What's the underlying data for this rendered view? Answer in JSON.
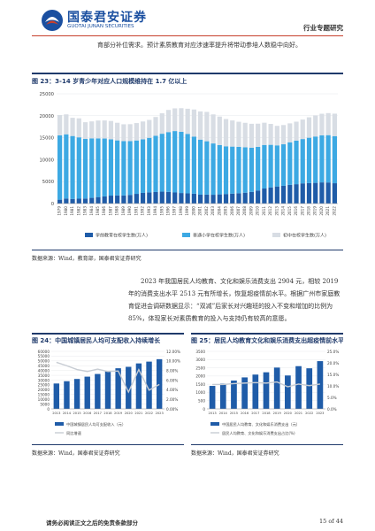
{
  "header": {
    "logo_cn": "国泰君安证券",
    "logo_en": "GUOTAI JUNAN SECURITIES",
    "report_type": "行业专题研究",
    "brand_color": "#1a4fa0",
    "accent_color": "#c7402d"
  },
  "intro_text": "育部分补位需求。预计素质教育对应涉速率提升将带动参培人数稳中向好。",
  "fig23": {
    "title": "图 23：3-14 岁青少年对应人口规模维持在 1.7 亿以上",
    "source": "数据来源：Wind，教育部，国泰君安证券研究"
  },
  "paragraph": "2023 年我国居民人均教育、文化和娱乐消费支出 2904 元，相较 2019 年的消费支出水平 2513 元有所增长，恢复超疫情前水平。根据广州市家庭教育促进会调研数据显示：“双减”后家长对兴趣班的投入不变和增加的比例为 85%，体现家长对素质教育的投入与支持仍有较高的意愿。",
  "fig24": {
    "title": "图 24：中国城镇居民人均可支配收入持续增长",
    "source": "数据来源：Wind，国泰君安证券研究"
  },
  "fig25": {
    "title": "图 25：居民人均教育文化和娱乐消费支出超疫情前水平",
    "source": "数据来源：Wind，国泰君安证券研究"
  },
  "footer": {
    "disclaimer": "请务必阅读正文之后的免责条款部分",
    "page": "15 of 44"
  },
  "chart_data": [
    {
      "type": "bar",
      "stacked": true,
      "categories": [
        "1979",
        "1980",
        "1981",
        "1982",
        "1983",
        "1984",
        "1985",
        "1986",
        "1987",
        "1988",
        "1989",
        "1990",
        "1991",
        "1992",
        "1993",
        "1994",
        "1995",
        "1996",
        "1997",
        "1998",
        "1999",
        "2000",
        "2001",
        "2002",
        "2003",
        "2004",
        "2005",
        "2006",
        "2007",
        "2008",
        "2009",
        "2010",
        "2011",
        "2012",
        "2013",
        "2014",
        "2015",
        "2016",
        "2017",
        "2018",
        "2019",
        "2020",
        "2021",
        "2022"
      ],
      "series": [
        {
          "name": "学前教育在校学生数(万人)",
          "color": "#1f5ca8",
          "values": [
            880,
            1150,
            1056,
            1113,
            1140,
            1295,
            1480,
            1629,
            1808,
            1854,
            1848,
            1972,
            2209,
            2428,
            2552,
            2630,
            2711,
            2666,
            2519,
            2403,
            2326,
            2244,
            2022,
            2036,
            2004,
            2089,
            2179,
            2264,
            2349,
            2475,
            2658,
            2977,
            3425,
            3686,
            3895,
            4051,
            4265,
            4414,
            4600,
            4656,
            4714,
            4818,
            4805,
            4628
          ]
        },
        {
          "name": "普通小学在校学生数(万人)",
          "color": "#3da9e3",
          "values": [
            14663,
            14627,
            14333,
            13972,
            13578,
            13557,
            13370,
            13183,
            12836,
            12536,
            12373,
            12241,
            12164,
            12201,
            12421,
            12823,
            13195,
            13615,
            13995,
            13954,
            13548,
            13013,
            12543,
            12157,
            11690,
            11246,
            10864,
            10712,
            10564,
            10332,
            10071,
            9941,
            9926,
            9695,
            9361,
            9451,
            9692,
            9913,
            10094,
            10339,
            10561,
            10725,
            10780,
            10732
          ]
        },
        {
          "name": "初中在校学生数(万人)",
          "color": "#d8dde4",
          "values": [
            4613,
            4538,
            4144,
            4328,
            3809,
            3864,
            4066,
            4117,
            4174,
            4015,
            3838,
            3869,
            3960,
            4066,
            4082,
            4266,
            4657,
            5048,
            5168,
            5363,
            5722,
            6168,
            6431,
            6688,
            6618,
            6475,
            6215,
            5958,
            5721,
            5584,
            5441,
            5276,
            5067,
            4763,
            4440,
            4384,
            4312,
            4329,
            4442,
            4652,
            4827,
            4914,
            5018,
            5120
          ]
        }
      ],
      "ylim": [
        0,
        25000
      ],
      "yticks": [
        0,
        5000,
        10000,
        15000,
        20000,
        25000
      ],
      "legend": "bottom"
    },
    {
      "type": "bar+line",
      "categories": [
        "2013",
        "2014",
        "2015",
        "2016",
        "2017",
        "2018",
        "2019",
        "2020",
        "2021",
        "2022",
        "2023"
      ],
      "series": [
        {
          "name": "中国城镇居民人均可支配收入（元）",
          "kind": "bar",
          "axis": "left",
          "color": "#1f5ca8",
          "values": [
            26467,
            28844,
            31195,
            33616,
            36396,
            39251,
            42359,
            43834,
            47412,
            49283,
            51821
          ]
        },
        {
          "name": "同比增速",
          "kind": "line",
          "axis": "right",
          "color": "#c7ccd3",
          "values": [
            9.7,
            9.0,
            8.2,
            7.8,
            8.3,
            7.8,
            7.9,
            3.5,
            8.2,
            3.9,
            5.1
          ]
        }
      ],
      "ylim_left": [
        0,
        60000
      ],
      "yticks_left": [
        0,
        5000,
        10000,
        15000,
        20000,
        25000,
        30000,
        35000,
        40000,
        45000,
        50000,
        55000,
        60000
      ],
      "ylim_right": [
        0,
        12
      ],
      "yticks_right": [
        "0.00%",
        "2.00%",
        "4.00%",
        "6.00%",
        "8.00%",
        "10.00%",
        "12.00%"
      ],
      "legend": "bottom"
    },
    {
      "type": "bar+line",
      "categories": [
        "2013",
        "2014",
        "2015",
        "2016",
        "2017",
        "2018",
        "2019",
        "2020",
        "2021",
        "2022",
        "2023"
      ],
      "series": [
        {
          "name": "中国居民人均教育、文化和娱乐消费支出（元）",
          "kind": "bar",
          "axis": "left",
          "color": "#1f5ca8",
          "values": [
            1398,
            1536,
            1723,
            1915,
            2086,
            2226,
            2513,
            2032,
            2599,
            2469,
            2904
          ]
        },
        {
          "name": "居民人均教育、文化和娱乐消费支出占比(%)",
          "kind": "line",
          "axis": "right",
          "color": "#c7ccd3",
          "values": [
            10.6,
            10.6,
            11.0,
            11.2,
            11.4,
            11.2,
            11.7,
            9.6,
            10.8,
            10.1,
            10.8
          ]
        }
      ],
      "ylim_left": [
        0,
        3500
      ],
      "yticks_left": [
        0,
        500,
        1000,
        1500,
        2000,
        2500,
        3000,
        3500
      ],
      "ylim_right": [
        0,
        25
      ],
      "yticks_right": [
        "0.0%",
        "5.0%",
        "10.0%",
        "15.0%",
        "20.0%",
        "25.0%"
      ],
      "legend": "bottom"
    }
  ]
}
